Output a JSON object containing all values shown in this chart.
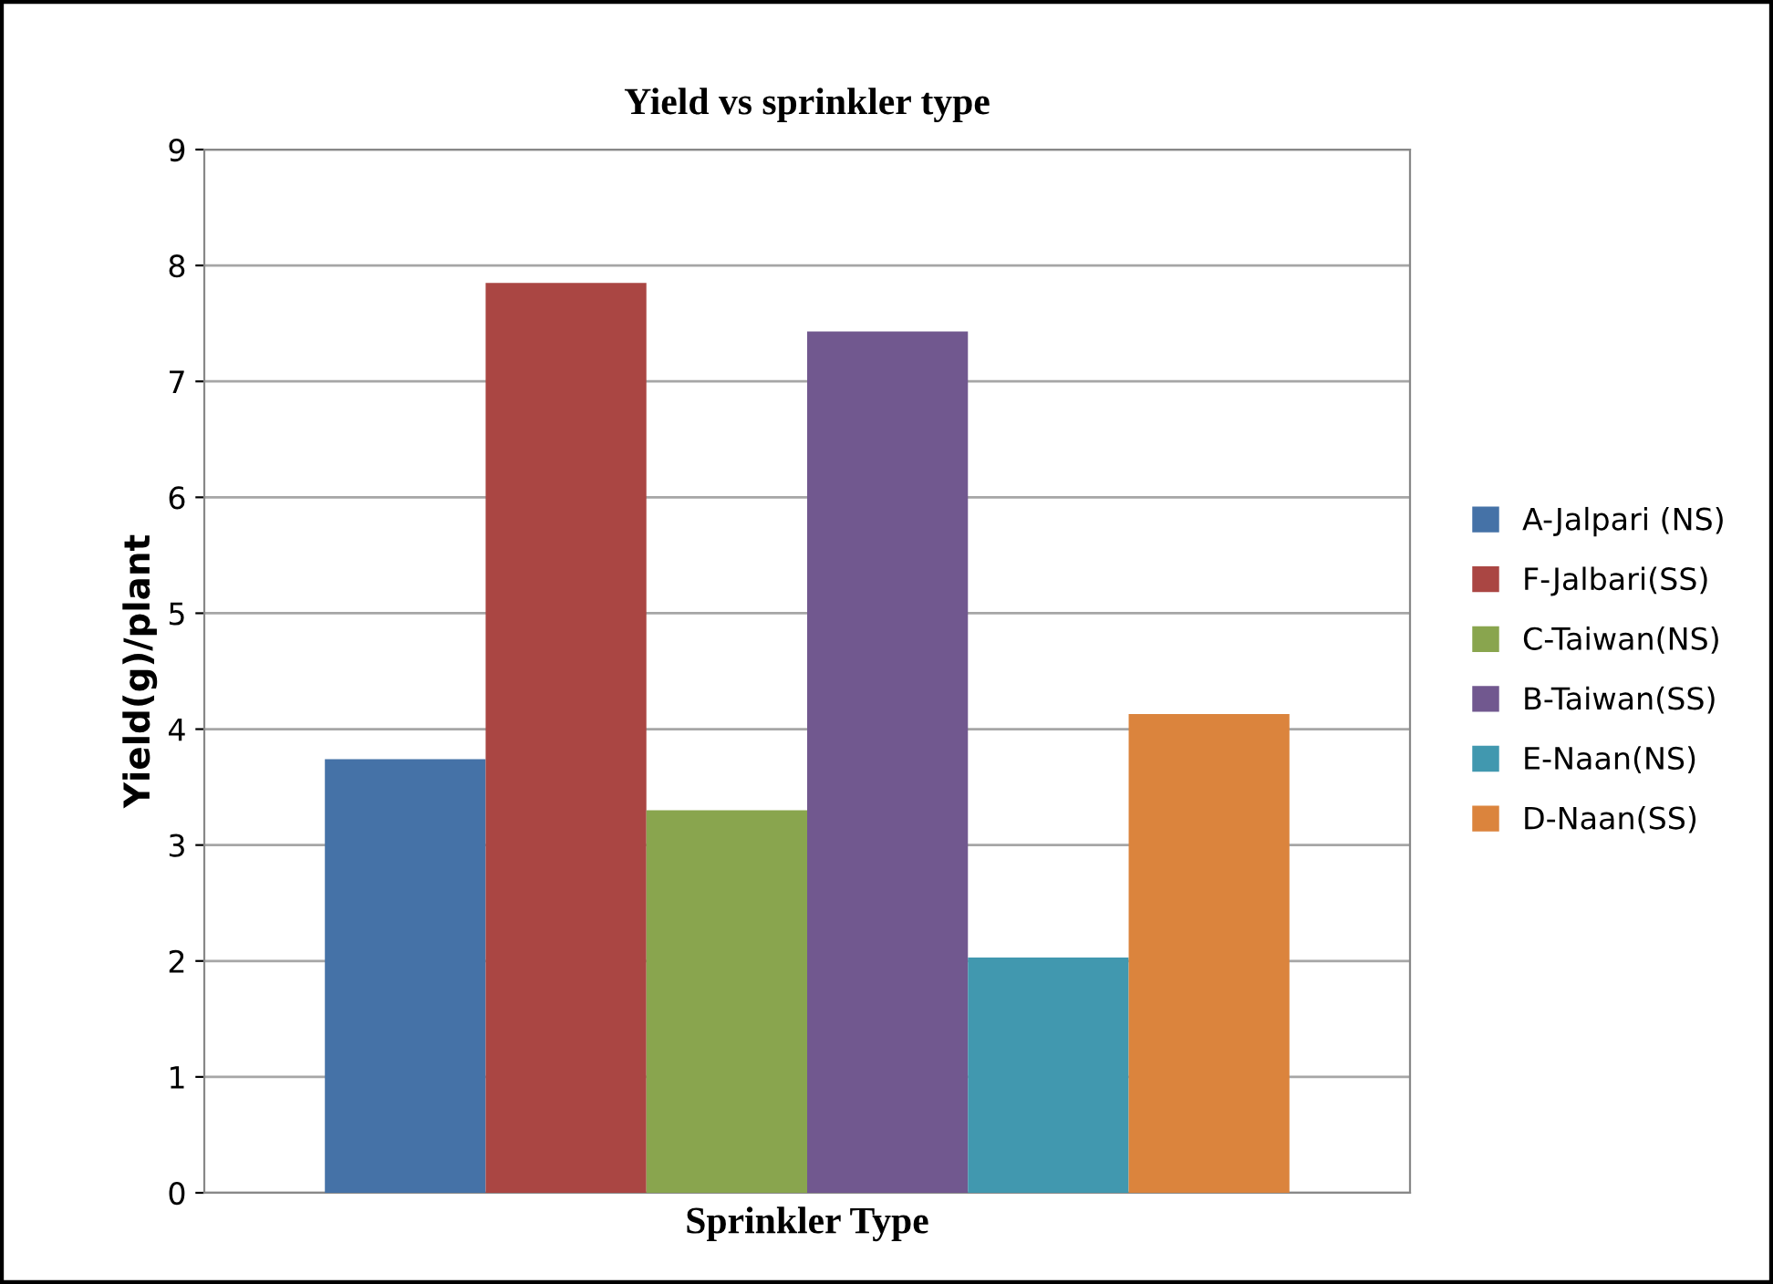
{
  "chart_data": {
    "type": "bar",
    "title": "Yield vs sprinkler type",
    "xlabel": "Sprinkler Type",
    "ylabel": "Yield(g)/plant",
    "categories": [
      null
    ],
    "series": [
      {
        "name": "A-Jalpari (NS)",
        "color": "#4572a7",
        "values": [
          3.74
        ]
      },
      {
        "name": "F-Jalbari(SS)",
        "color": "#aa4643",
        "values": [
          7.85
        ]
      },
      {
        "name": "C-Taiwan(NS)",
        "color": "#89a54e",
        "values": [
          3.3
        ]
      },
      {
        "name": "B-Taiwan(SS)",
        "color": "#71588f",
        "values": [
          7.43
        ]
      },
      {
        "name": "E-Naan(NS)",
        "color": "#4198af",
        "values": [
          2.03
        ]
      },
      {
        "name": "D-Naan(SS)",
        "color": "#db843d",
        "values": [
          4.13
        ]
      }
    ],
    "ylim": [
      0,
      9
    ],
    "yticks": [
      0,
      1,
      2,
      3,
      4,
      5,
      6,
      7,
      8,
      9
    ],
    "grid": "y",
    "legend": "right"
  }
}
